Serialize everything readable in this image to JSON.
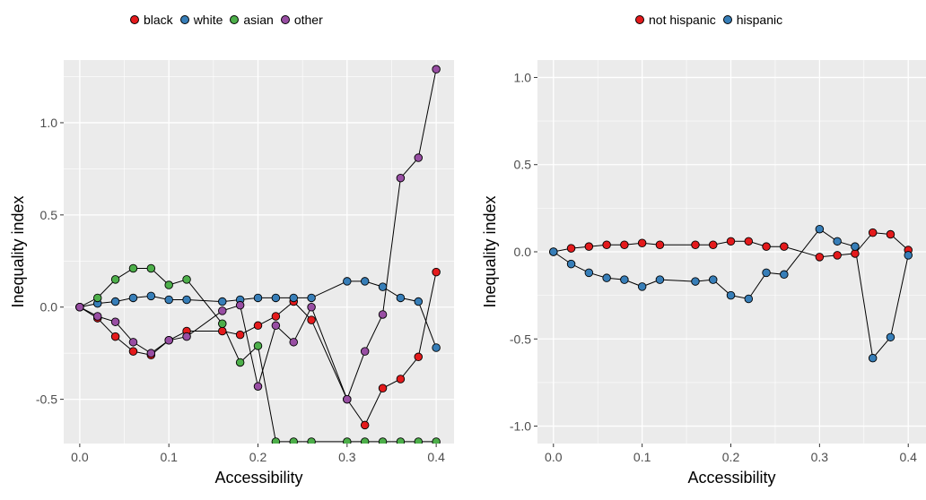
{
  "chart_data": [
    {
      "type": "line",
      "title": "",
      "xlabel": "Accessibility",
      "ylabel": "Inequality index",
      "xlim": [
        -0.018,
        0.42
      ],
      "ylim": [
        -0.74,
        1.34
      ],
      "xticks": [
        0.0,
        0.1,
        0.2,
        0.3,
        0.4
      ],
      "xtick_labels": [
        "0.0",
        "0.1",
        "0.2",
        "0.3",
        "0.4"
      ],
      "yticks": [
        -0.5,
        0.0,
        0.5,
        1.0
      ],
      "ytick_labels": [
        "-0.5",
        "0.0",
        "0.5",
        "1.0"
      ],
      "grid": true,
      "legend_position": "top",
      "x": [
        0.0,
        0.02,
        0.04,
        0.06,
        0.08,
        0.1,
        0.12,
        0.16,
        0.18,
        0.2,
        0.22,
        0.24,
        0.26,
        0.3,
        0.32,
        0.34,
        0.36,
        0.38,
        0.4
      ],
      "series": [
        {
          "name": "black",
          "color": "#E41A1C",
          "values": [
            0.0,
            -0.06,
            -0.16,
            -0.24,
            -0.26,
            -0.18,
            -0.13,
            -0.13,
            -0.15,
            -0.1,
            -0.05,
            0.03,
            -0.07,
            -0.5,
            -0.64,
            -0.44,
            -0.39,
            -0.27,
            0.19
          ]
        },
        {
          "name": "white",
          "color": "#377EB8",
          "values": [
            0.0,
            0.02,
            0.03,
            0.05,
            0.06,
            0.04,
            0.04,
            0.03,
            0.04,
            0.05,
            0.05,
            0.05,
            0.05,
            0.14,
            0.14,
            0.11,
            0.05,
            0.03,
            -0.22
          ]
        },
        {
          "name": "asian",
          "color": "#4DAF4A",
          "values": [
            0.0,
            0.05,
            0.15,
            0.21,
            0.21,
            0.12,
            0.15,
            -0.09,
            -0.3,
            -0.21,
            -0.73,
            -0.73,
            -0.73,
            -0.73,
            -0.73,
            -0.73,
            -0.73,
            -0.73,
            -0.73
          ]
        },
        {
          "name": "other",
          "color": "#984EA3",
          "values": [
            0.0,
            -0.05,
            -0.08,
            -0.19,
            -0.25,
            -0.18,
            -0.16,
            -0.02,
            0.01,
            -0.43,
            -0.1,
            -0.19,
            0.0,
            -0.5,
            -0.24,
            -0.04,
            0.7,
            0.81,
            1.29
          ]
        }
      ]
    },
    {
      "type": "line",
      "title": "",
      "xlabel": "Accessibility",
      "ylabel": "Inequality index",
      "xlim": [
        -0.018,
        0.42
      ],
      "ylim": [
        -1.1,
        1.1
      ],
      "xticks": [
        0.0,
        0.1,
        0.2,
        0.3,
        0.4
      ],
      "xtick_labels": [
        "0.0",
        "0.1",
        "0.2",
        "0.3",
        "0.4"
      ],
      "yticks": [
        -1.0,
        -0.5,
        0.0,
        0.5,
        1.0
      ],
      "ytick_labels": [
        "-1.0",
        "-0.5",
        "0.0",
        "0.5",
        "1.0"
      ],
      "grid": true,
      "legend_position": "top",
      "x": [
        0.0,
        0.02,
        0.04,
        0.06,
        0.08,
        0.1,
        0.12,
        0.16,
        0.18,
        0.2,
        0.22,
        0.24,
        0.26,
        0.3,
        0.32,
        0.34,
        0.36,
        0.38,
        0.4
      ],
      "series": [
        {
          "name": "not hispanic",
          "color": "#E41A1C",
          "values": [
            0.0,
            0.02,
            0.03,
            0.04,
            0.04,
            0.05,
            0.04,
            0.04,
            0.04,
            0.06,
            0.06,
            0.03,
            0.03,
            -0.03,
            -0.02,
            -0.01,
            0.11,
            0.1,
            0.01
          ]
        },
        {
          "name": "hispanic",
          "color": "#377EB8",
          "values": [
            0.0,
            -0.07,
            -0.12,
            -0.15,
            -0.16,
            -0.2,
            -0.16,
            -0.17,
            -0.16,
            -0.25,
            -0.27,
            -0.12,
            -0.13,
            0.13,
            0.06,
            0.03,
            -0.61,
            -0.49,
            -0.02
          ]
        }
      ]
    }
  ]
}
